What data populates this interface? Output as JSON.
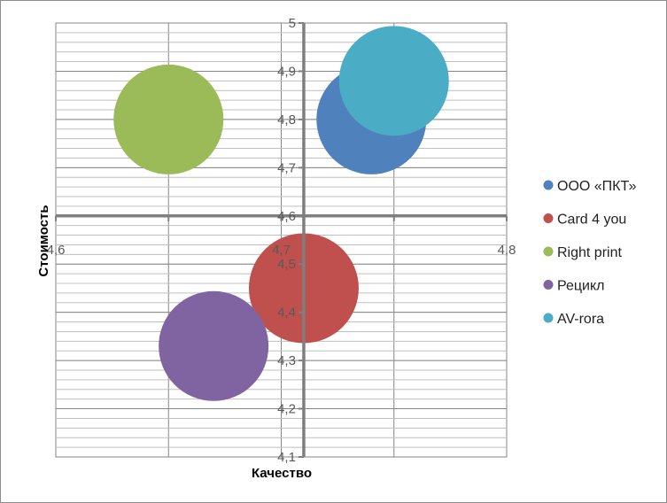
{
  "chart_data": {
    "type": "bubble",
    "xlabel": "Качество",
    "ylabel": "Стоимость",
    "xlim": [
      4.6,
      4.8
    ],
    "ylim": [
      4.1,
      5.0
    ],
    "x_ticks": [
      "4,6",
      "4,7",
      "4,8"
    ],
    "y_ticks": [
      "4,1",
      "4,2",
      "4,3",
      "4,4",
      "4,5",
      "4,6",
      "4,7",
      "4,8",
      "4,9",
      "5"
    ],
    "x_axis_crosses_y": 4.6,
    "y_axis_crosses_x": 4.71,
    "grid": true,
    "legend_position": "right",
    "series": [
      {
        "name": "ООО «ПКТ»",
        "x": 4.74,
        "y": 4.8,
        "color": "#4F81BD"
      },
      {
        "name": "Card 4 you",
        "x": 4.71,
        "y": 4.45,
        "color": "#C0504D"
      },
      {
        "name": "Right print",
        "x": 4.65,
        "y": 4.8,
        "color": "#9BBB59"
      },
      {
        "name": "Рецикл",
        "x": 4.67,
        "y": 4.33,
        "color": "#8064A2"
      },
      {
        "name": "AV-rora",
        "x": 4.75,
        "y": 4.88,
        "color": "#4BACC6"
      }
    ]
  }
}
